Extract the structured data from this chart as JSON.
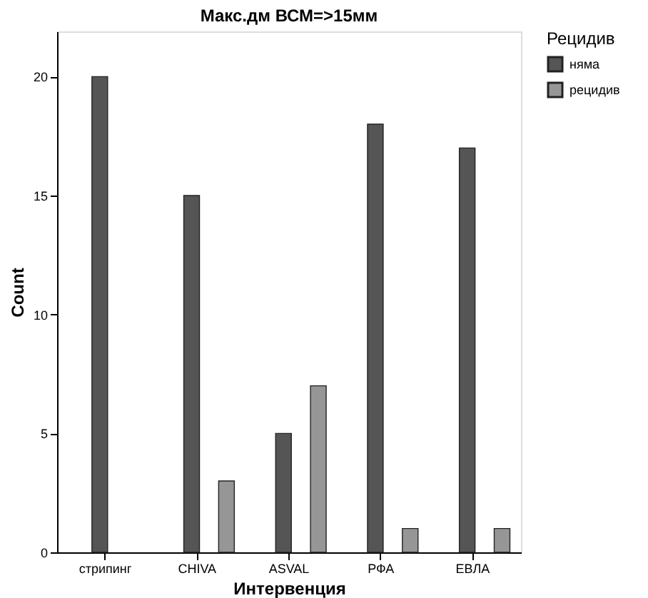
{
  "chart_data": {
    "type": "bar",
    "title": "Макс.дм ВСМ=>15мм",
    "xlabel": "Интервенция",
    "ylabel": "Count",
    "legend_title": "Рецидив",
    "categories": [
      "стрипинг",
      "CHIVA",
      "ASVAL",
      "РФА",
      "ЕВЛА"
    ],
    "series": [
      {
        "name": "няма",
        "color": "#555555",
        "values": [
          20,
          15,
          5,
          18,
          17
        ]
      },
      {
        "name": "рецидив",
        "color": "#969696",
        "values": [
          0,
          3,
          7,
          1,
          1
        ]
      }
    ],
    "ylim": [
      0,
      21.9
    ],
    "yticks": [
      0,
      5,
      10,
      15,
      20
    ],
    "grid": false,
    "legend": "right"
  }
}
